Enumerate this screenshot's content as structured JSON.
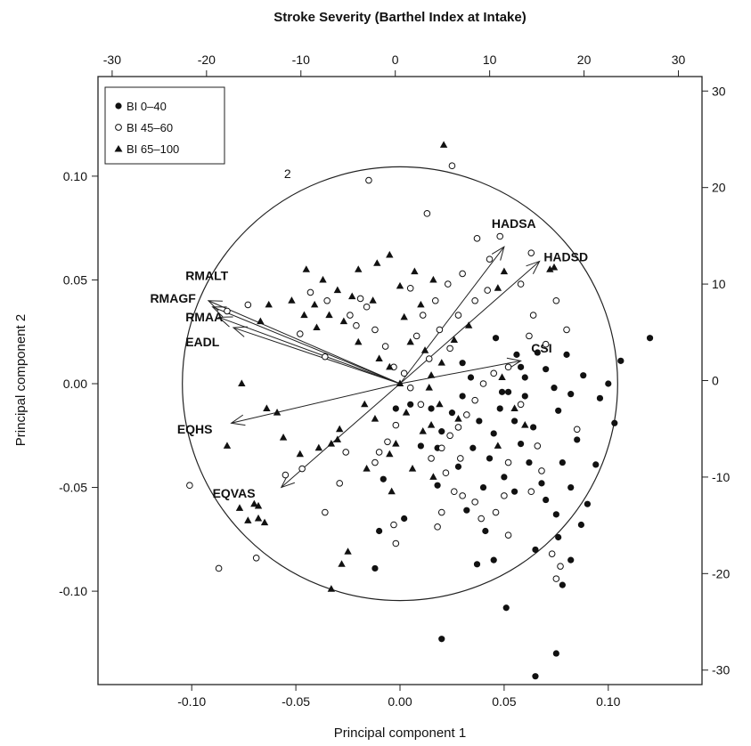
{
  "chart_data": {
    "type": "scatter",
    "title": "Stroke Severity (Barthel Index at Intake)",
    "xlabel": "Principal component 1",
    "ylabel": "Principal component 2",
    "xlim": [
      -0.145,
      0.145
    ],
    "ylim": [
      -0.145,
      0.148
    ],
    "x_ticks": [
      "-0.10",
      "-0.05",
      "0.00",
      "0.05",
      "0.10"
    ],
    "y_ticks": [
      "-0.10",
      "-0.05",
      "0.00",
      "0.05",
      "0.10"
    ],
    "x_tick_values": [
      -0.1,
      -0.05,
      0.0,
      0.05,
      0.1
    ],
    "y_tick_values": [
      -0.1,
      -0.05,
      0.0,
      0.05,
      0.1
    ],
    "top_axis": {
      "lim": [
        -31.5,
        32.5
      ],
      "ticks": [
        "-30",
        "-20",
        "-10",
        "0",
        "10",
        "20",
        "30"
      ],
      "tick_values": [
        -30,
        -20,
        -10,
        0,
        10,
        20,
        30
      ]
    },
    "right_axis": {
      "lim": [
        -31.5,
        31.5
      ],
      "ticks": [
        "30",
        "20",
        "10",
        "0",
        "-10",
        "-20",
        "-30"
      ],
      "tick_values": [
        30,
        20,
        10,
        0,
        -10,
        -20,
        -30
      ]
    },
    "grid": false,
    "legend_position": "top-left",
    "circle": {
      "label": "2",
      "center": [
        0,
        0
      ],
      "radius_pc": 0.1045,
      "label_pos": [
        -0.054,
        0.099
      ]
    },
    "series": [
      {
        "name": "BI 0–40",
        "marker": "filled-circle",
        "points": [
          [
            0.12,
            0.022
          ],
          [
            0.106,
            0.011
          ],
          [
            0.1,
            0.0
          ],
          [
            0.103,
            -0.019
          ],
          [
            0.096,
            -0.007
          ],
          [
            0.088,
            0.004
          ],
          [
            0.08,
            0.014
          ],
          [
            0.082,
            -0.005
          ],
          [
            0.076,
            -0.013
          ],
          [
            0.085,
            -0.027
          ],
          [
            0.078,
            -0.038
          ],
          [
            0.094,
            -0.039
          ],
          [
            0.082,
            -0.05
          ],
          [
            0.09,
            -0.058
          ],
          [
            0.075,
            -0.063
          ],
          [
            0.087,
            -0.068
          ],
          [
            0.076,
            -0.074
          ],
          [
            0.082,
            -0.085
          ],
          [
            0.078,
            -0.097
          ],
          [
            0.065,
            -0.08
          ],
          [
            0.07,
            -0.056
          ],
          [
            0.068,
            -0.048
          ],
          [
            0.062,
            -0.038
          ],
          [
            0.058,
            -0.029
          ],
          [
            0.055,
            -0.018
          ],
          [
            0.064,
            -0.021
          ],
          [
            0.06,
            -0.006
          ],
          [
            0.052,
            -0.004
          ],
          [
            0.048,
            -0.012
          ],
          [
            0.045,
            -0.024
          ],
          [
            0.043,
            -0.036
          ],
          [
            0.05,
            -0.045
          ],
          [
            0.055,
            -0.052
          ],
          [
            0.04,
            -0.05
          ],
          [
            0.035,
            -0.031
          ],
          [
            0.038,
            -0.018
          ],
          [
            0.03,
            -0.006
          ],
          [
            0.025,
            -0.014
          ],
          [
            0.02,
            -0.023
          ],
          [
            0.018,
            -0.031
          ],
          [
            0.028,
            -0.04
          ],
          [
            0.032,
            -0.061
          ],
          [
            0.041,
            -0.071
          ],
          [
            0.045,
            -0.085
          ],
          [
            0.037,
            -0.087
          ],
          [
            0.051,
            -0.108
          ],
          [
            0.075,
            -0.13
          ],
          [
            0.065,
            -0.141
          ],
          [
            0.02,
            -0.123
          ],
          [
            0.01,
            -0.03
          ],
          [
            0.005,
            -0.01
          ],
          [
            -0.008,
            -0.046
          ],
          [
            -0.012,
            -0.089
          ],
          [
            -0.01,
            -0.071
          ],
          [
            0.046,
            0.022
          ],
          [
            0.056,
            0.014
          ],
          [
            0.06,
            0.003
          ],
          [
            0.066,
            0.015
          ],
          [
            0.03,
            0.01
          ],
          [
            0.034,
            0.003
          ],
          [
            0.015,
            -0.012
          ],
          [
            0.018,
            -0.049
          ],
          [
            0.002,
            -0.065
          ],
          [
            -0.002,
            -0.012
          ],
          [
            0.07,
            0.007
          ],
          [
            0.074,
            -0.002
          ],
          [
            0.049,
            -0.004
          ],
          [
            0.058,
            0.008
          ]
        ]
      },
      {
        "name": "BI 45–60",
        "marker": "open-circle",
        "points": [
          [
            0.025,
            0.105
          ],
          [
            0.013,
            0.082
          ],
          [
            -0.015,
            0.098
          ],
          [
            0.037,
            0.07
          ],
          [
            0.063,
            0.063
          ],
          [
            0.048,
            0.071
          ],
          [
            0.043,
            0.06
          ],
          [
            0.03,
            0.053
          ],
          [
            0.023,
            0.048
          ],
          [
            0.017,
            0.04
          ],
          [
            0.011,
            0.033
          ],
          [
            0.008,
            0.023
          ],
          [
            0.019,
            0.026
          ],
          [
            0.028,
            0.033
          ],
          [
            0.036,
            0.04
          ],
          [
            0.042,
            0.045
          ],
          [
            0.058,
            0.048
          ],
          [
            0.064,
            0.033
          ],
          [
            0.075,
            0.04
          ],
          [
            0.08,
            0.026
          ],
          [
            0.07,
            0.019
          ],
          [
            0.052,
            0.008
          ],
          [
            0.045,
            0.005
          ],
          [
            0.04,
            0.0
          ],
          [
            0.036,
            -0.008
          ],
          [
            0.032,
            -0.015
          ],
          [
            0.028,
            -0.021
          ],
          [
            0.024,
            -0.025
          ],
          [
            0.02,
            -0.031
          ],
          [
            0.015,
            -0.036
          ],
          [
            0.022,
            -0.043
          ],
          [
            0.026,
            -0.052
          ],
          [
            0.03,
            -0.054
          ],
          [
            0.02,
            -0.062
          ],
          [
            0.018,
            -0.069
          ],
          [
            0.036,
            -0.057
          ],
          [
            0.046,
            -0.062
          ],
          [
            0.05,
            -0.054
          ],
          [
            0.063,
            -0.052
          ],
          [
            0.068,
            -0.042
          ],
          [
            0.073,
            -0.082
          ],
          [
            0.075,
            -0.094
          ],
          [
            0.077,
            -0.088
          ],
          [
            0.085,
            -0.022
          ],
          [
            0.058,
            -0.01
          ],
          [
            0.066,
            -0.03
          ],
          [
            0.052,
            -0.038
          ],
          [
            -0.003,
            -0.068
          ],
          [
            -0.002,
            -0.077
          ],
          [
            -0.012,
            -0.038
          ],
          [
            -0.026,
            -0.033
          ],
          [
            -0.029,
            -0.048
          ],
          [
            -0.036,
            -0.062
          ],
          [
            -0.047,
            -0.041
          ],
          [
            -0.055,
            -0.044
          ],
          [
            -0.069,
            -0.084
          ],
          [
            -0.087,
            -0.089
          ],
          [
            -0.101,
            -0.049
          ],
          [
            -0.083,
            0.035
          ],
          [
            -0.073,
            0.038
          ],
          [
            -0.043,
            0.044
          ],
          [
            -0.035,
            0.04
          ],
          [
            -0.024,
            0.033
          ],
          [
            -0.016,
            0.037
          ],
          [
            -0.012,
            0.026
          ],
          [
            -0.007,
            0.018
          ],
          [
            -0.003,
            0.008
          ],
          [
            0.002,
            0.005
          ],
          [
            0.005,
            -0.002
          ],
          [
            0.01,
            -0.01
          ],
          [
            -0.002,
            -0.02
          ],
          [
            -0.006,
            -0.028
          ],
          [
            -0.01,
            -0.033
          ],
          [
            0.005,
            0.046
          ],
          [
            -0.019,
            0.041
          ],
          [
            -0.021,
            0.028
          ],
          [
            -0.036,
            0.013
          ],
          [
            0.062,
            0.023
          ],
          [
            0.029,
            -0.036
          ],
          [
            0.039,
            -0.065
          ],
          [
            0.052,
            -0.073
          ],
          [
            -0.048,
            0.024
          ],
          [
            0.014,
            0.012
          ],
          [
            0.024,
            0.017
          ]
        ]
      },
      {
        "name": "BI 65–100",
        "marker": "filled-triangle",
        "points": [
          [
            0.021,
            0.115
          ],
          [
            -0.045,
            0.055
          ],
          [
            -0.037,
            0.05
          ],
          [
            -0.02,
            0.055
          ],
          [
            -0.011,
            0.058
          ],
          [
            -0.005,
            0.062
          ],
          [
            0.007,
            0.054
          ],
          [
            0.016,
            0.05
          ],
          [
            -0.03,
            0.045
          ],
          [
            -0.023,
            0.042
          ],
          [
            -0.013,
            0.04
          ],
          [
            0.0,
            0.047
          ],
          [
            -0.041,
            0.038
          ],
          [
            -0.034,
            0.033
          ],
          [
            -0.027,
            0.03
          ],
          [
            -0.046,
            0.033
          ],
          [
            -0.052,
            0.04
          ],
          [
            -0.063,
            0.038
          ],
          [
            -0.067,
            0.03
          ],
          [
            -0.04,
            0.027
          ],
          [
            -0.02,
            0.02
          ],
          [
            -0.01,
            0.012
          ],
          [
            -0.005,
            0.008
          ],
          [
            0.0,
            0.0
          ],
          [
            0.015,
            0.004
          ],
          [
            0.02,
            0.01
          ],
          [
            0.047,
            0.046
          ],
          [
            0.05,
            0.054
          ],
          [
            0.072,
            0.055
          ],
          [
            0.074,
            0.056
          ],
          [
            0.033,
            0.028
          ],
          [
            0.026,
            0.021
          ],
          [
            0.012,
            0.016
          ],
          [
            0.005,
            0.02
          ],
          [
            -0.017,
            -0.01
          ],
          [
            -0.029,
            -0.022
          ],
          [
            -0.033,
            -0.029
          ],
          [
            -0.039,
            -0.031
          ],
          [
            -0.048,
            -0.034
          ],
          [
            -0.056,
            -0.026
          ],
          [
            -0.059,
            -0.014
          ],
          [
            -0.064,
            -0.012
          ],
          [
            -0.076,
            0.0
          ],
          [
            -0.083,
            -0.03
          ],
          [
            -0.077,
            -0.06
          ],
          [
            -0.068,
            -0.059
          ],
          [
            -0.068,
            -0.065
          ],
          [
            -0.073,
            -0.066
          ],
          [
            -0.065,
            -0.067
          ],
          [
            -0.028,
            -0.087
          ],
          [
            -0.025,
            -0.081
          ],
          [
            -0.033,
            -0.099
          ],
          [
            -0.004,
            -0.052
          ],
          [
            -0.016,
            -0.041
          ],
          [
            -0.002,
            -0.029
          ],
          [
            0.011,
            -0.023
          ],
          [
            0.015,
            -0.02
          ],
          [
            0.016,
            -0.045
          ],
          [
            0.006,
            -0.041
          ],
          [
            -0.005,
            -0.034
          ],
          [
            0.003,
            -0.014
          ],
          [
            0.019,
            -0.01
          ],
          [
            0.014,
            -0.002
          ],
          [
            0.028,
            -0.017
          ],
          [
            0.047,
            -0.03
          ],
          [
            0.055,
            -0.012
          ],
          [
            0.06,
            -0.02
          ],
          [
            0.049,
            0.003
          ],
          [
            -0.012,
            -0.017
          ],
          [
            -0.03,
            -0.027
          ],
          [
            -0.07,
            -0.058
          ],
          [
            0.002,
            0.032
          ],
          [
            0.01,
            0.038
          ]
        ]
      }
    ],
    "vectors": [
      {
        "name": "HADSA",
        "end": [
          0.05,
          0.066
        ],
        "label_pos": [
          0.044,
          0.075
        ]
      },
      {
        "name": "HADSD",
        "end": [
          0.067,
          0.059
        ],
        "label_pos": [
          0.069,
          0.059
        ]
      },
      {
        "name": "CSI",
        "end": [
          0.058,
          0.011
        ],
        "label_pos": [
          0.063,
          0.015
        ]
      },
      {
        "name": "RMALT",
        "end": [
          -0.09,
          0.037
        ],
        "label_pos": [
          -0.103,
          0.05
        ]
      },
      {
        "name": "RMAGF",
        "end": [
          -0.092,
          0.04
        ],
        "label_pos": [
          -0.12,
          0.039
        ]
      },
      {
        "name": "RMAA",
        "end": [
          -0.087,
          0.032
        ],
        "label_pos": [
          -0.103,
          0.03
        ]
      },
      {
        "name": "EADL",
        "end": [
          -0.08,
          0.027
        ],
        "label_pos": [
          -0.103,
          0.018
        ]
      },
      {
        "name": "EQHS",
        "end": [
          -0.081,
          -0.019
        ],
        "label_pos": [
          -0.107,
          -0.024
        ]
      },
      {
        "name": "EQVAS",
        "end": [
          -0.057,
          -0.05
        ],
        "label_pos": [
          -0.09,
          -0.055
        ]
      }
    ]
  }
}
